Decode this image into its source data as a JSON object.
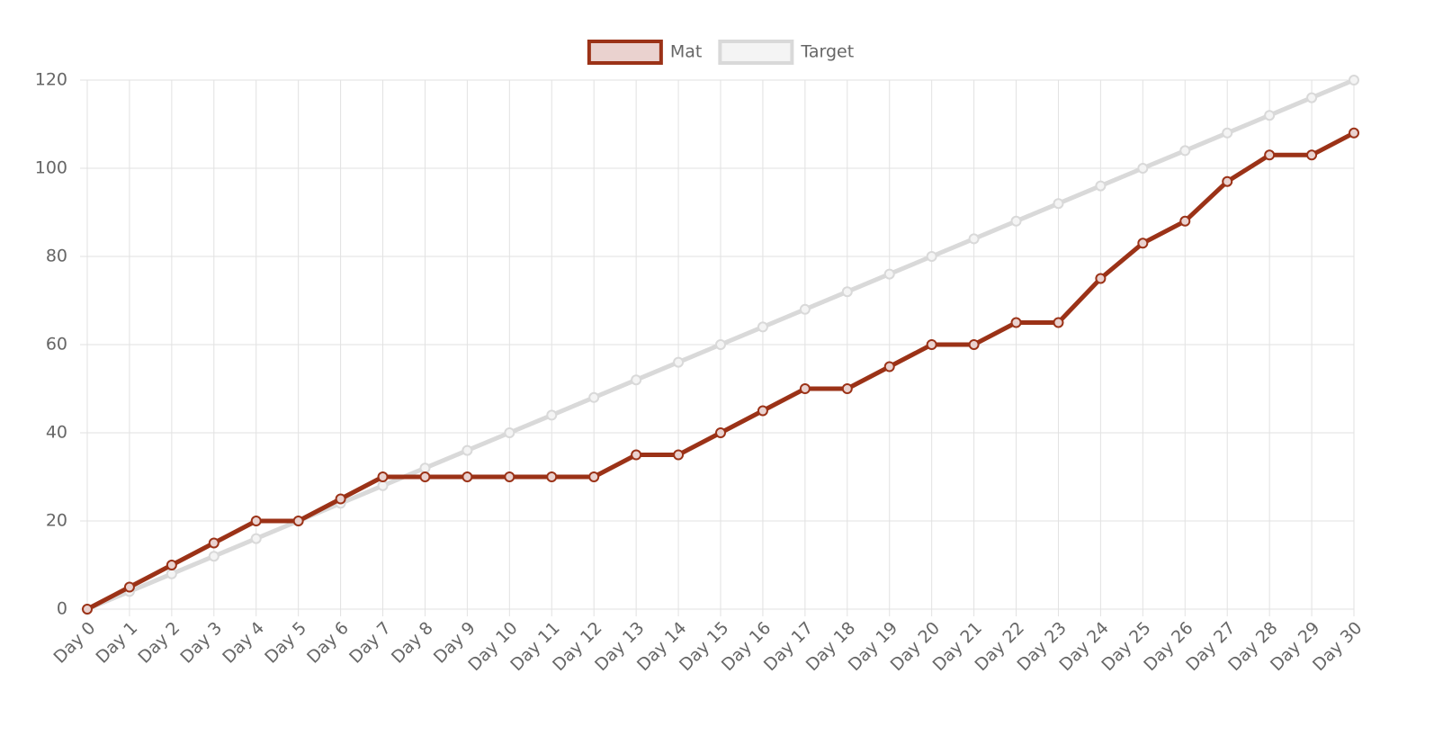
{
  "chart_data": {
    "type": "line",
    "categories": [
      "Day 0",
      "Day 1",
      "Day 2",
      "Day 3",
      "Day 4",
      "Day 5",
      "Day 6",
      "Day 7",
      "Day 8",
      "Day 9",
      "Day 10",
      "Day 11",
      "Day 12",
      "Day 13",
      "Day 14",
      "Day 15",
      "Day 16",
      "Day 17",
      "Day 18",
      "Day 19",
      "Day 20",
      "Day 21",
      "Day 22",
      "Day 23",
      "Day 24",
      "Day 25",
      "Day 26",
      "Day 27",
      "Day 28",
      "Day 29",
      "Day 30"
    ],
    "series": [
      {
        "name": "Mat",
        "color": "#9b3217",
        "fill_color": "#ead2cf",
        "values": [
          0,
          5,
          10,
          15,
          20,
          20,
          25,
          30,
          30,
          30,
          30,
          30,
          30,
          35,
          35,
          40,
          45,
          50,
          50,
          55,
          60,
          60,
          65,
          65,
          75,
          83,
          88,
          97,
          103,
          103,
          108
        ]
      },
      {
        "name": "Target",
        "color": "#d9d9d9",
        "fill_color": "#f4f4f4",
        "values": [
          0,
          4,
          8,
          12,
          16,
          20,
          24,
          28,
          32,
          36,
          40,
          44,
          48,
          52,
          56,
          60,
          64,
          68,
          72,
          76,
          80,
          84,
          88,
          92,
          96,
          100,
          104,
          108,
          112,
          116,
          120
        ]
      }
    ],
    "ylim": [
      0,
      120
    ],
    "yticks": [
      0,
      20,
      40,
      60,
      80,
      100,
      120
    ],
    "grid": true,
    "legend": "top"
  }
}
